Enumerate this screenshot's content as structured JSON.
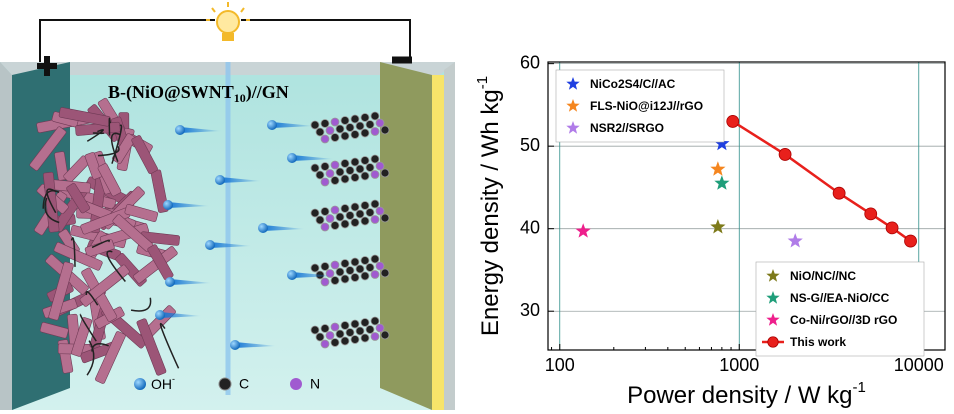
{
  "illustration": {
    "label_parts": [
      "B-(NiO@SWNT",
      "10",
      ")//GN"
    ],
    "legend": [
      {
        "parts": [
          "OH",
          "-"
        ]
      },
      {
        "parts": [
          "C"
        ]
      },
      {
        "parts": [
          "N"
        ]
      }
    ]
  },
  "chart_data": {
    "type": "scatter",
    "xlabel_parts": [
      "Power density / W kg",
      "-1"
    ],
    "ylabel_parts": [
      "Energy density / Wh kg",
      "-1"
    ],
    "xscale": "log",
    "xlim": [
      86,
      14000
    ],
    "xticks": [
      100,
      1000,
      10000
    ],
    "ylim": [
      25.3,
      60.2
    ],
    "yticks": [
      30,
      40,
      50,
      60
    ],
    "grid": true,
    "series": [
      {
        "name": "NiCo2S4/C//AC",
        "color": "#1f3fe0",
        "marker": "star",
        "legend": "upper left",
        "x": [
          800
        ],
        "values": [
          50.3
        ]
      },
      {
        "name": "FLS-NiO@i12J//rGO",
        "color": "#f5861f",
        "marker": "star",
        "legend": "upper left",
        "x": [
          760
        ],
        "values": [
          47.2
        ]
      },
      {
        "name": "NSR2//SRGO",
        "color": "#b07ce8",
        "marker": "star",
        "legend": "upper left",
        "x": [
          2050
        ],
        "values": [
          38.5
        ]
      },
      {
        "name": "NiO/NC//NC",
        "color": "#7d7a1a",
        "marker": "star",
        "legend": "lower right",
        "x": [
          760
        ],
        "values": [
          40.2
        ]
      },
      {
        "name": "NS-G//EA-NiO/CC",
        "color": "#1f9e7a",
        "marker": "star",
        "legend": "lower right",
        "x": [
          800
        ],
        "values": [
          45.5
        ]
      },
      {
        "name": "Co-Ni/rGO//3D rGO",
        "color": "#ee1f8c",
        "marker": "star",
        "legend": "lower right",
        "x": [
          135
        ],
        "values": [
          39.7
        ]
      },
      {
        "name": "This work",
        "color": "#e8201c",
        "marker": "circle",
        "line": true,
        "legend": "lower right",
        "x": [
          920,
          1800,
          3600,
          5400,
          7100,
          9000
        ],
        "values": [
          53.0,
          49.0,
          44.3,
          41.8,
          40.1,
          38.5
        ]
      }
    ]
  }
}
